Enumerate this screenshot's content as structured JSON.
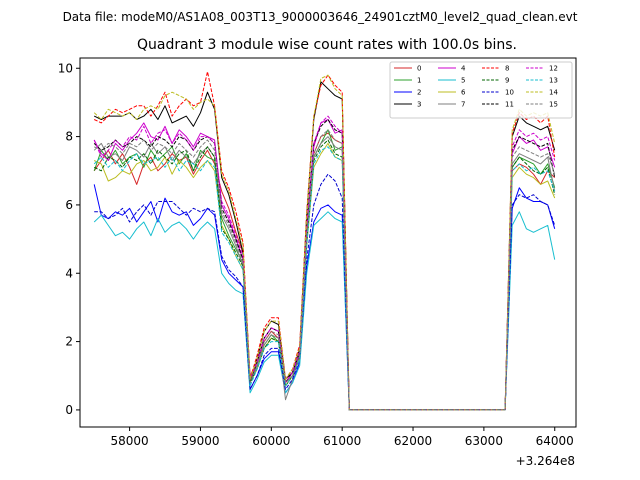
{
  "suptitle": "Data file: modeM0/AS1A08_003T13_9000003646_24901cztM0_level2_quad_clean.evt",
  "chart_data": {
    "type": "line",
    "title": "Quadrant 3 module wise count rates with 100.0s bins.",
    "xlabel": "",
    "ylabel": "",
    "x_offset_label": "+3.264e8",
    "xlim": [
      57300,
      64300
    ],
    "ylim": [
      -0.5,
      10.3
    ],
    "xticks": [
      58000,
      59000,
      60000,
      61000,
      62000,
      63000,
      64000
    ],
    "yticks": [
      0,
      2,
      4,
      6,
      8,
      10
    ],
    "legend_position": "top-right",
    "x": [
      57500,
      57600,
      57700,
      57800,
      57900,
      58000,
      58100,
      58200,
      58300,
      58400,
      58500,
      58600,
      58700,
      58800,
      58900,
      59000,
      59100,
      59200,
      59300,
      59400,
      59500,
      59600,
      59700,
      59800,
      59900,
      60000,
      60100,
      60200,
      60300,
      60400,
      60500,
      60600,
      60700,
      60800,
      60900,
      61000,
      61100,
      61200,
      61300,
      61400,
      61500,
      61600,
      61700,
      61800,
      61900,
      62000,
      62100,
      62200,
      62300,
      62400,
      62500,
      62600,
      62700,
      62800,
      62900,
      63000,
      63100,
      63200,
      63300,
      63400,
      63500,
      63600,
      63700,
      63800,
      63900,
      64000
    ],
    "series": [
      {
        "name": "0",
        "color": "#d62728",
        "dash": false,
        "values": [
          7.0,
          7.3,
          7.6,
          7.2,
          7.5,
          7.1,
          6.6,
          7.2,
          7.4,
          7.0,
          7.2,
          7.5,
          7.3,
          7.4,
          6.9,
          7.3,
          7.6,
          7.2,
          6.4,
          5.9,
          5.2,
          4.6,
          1.0,
          1.4,
          2.0,
          2.3,
          2.1,
          0.8,
          1.0,
          1.7,
          5.0,
          7.5,
          8.0,
          8.1,
          7.9,
          7.8,
          0,
          0,
          0,
          0,
          0,
          0,
          0,
          0,
          0,
          0,
          0,
          0,
          0,
          0,
          0,
          0,
          0,
          0,
          0,
          0,
          0,
          0,
          0,
          7.0,
          7.2,
          7.1,
          6.9,
          6.6,
          7.0,
          6.8
        ]
      },
      {
        "name": "1",
        "color": "#2ca02c",
        "dash": false,
        "values": [
          7.0,
          7.6,
          7.3,
          7.6,
          7.2,
          7.4,
          7.5,
          7.1,
          7.6,
          7.3,
          7.5,
          7.7,
          7.2,
          7.5,
          7.0,
          7.6,
          7.4,
          7.3,
          5.6,
          5.1,
          4.7,
          4.3,
          0.9,
          1.3,
          1.9,
          2.2,
          2.0,
          0.7,
          1.0,
          1.6,
          4.9,
          7.4,
          7.8,
          8.2,
          7.6,
          7.7,
          0,
          0,
          0,
          0,
          0,
          0,
          0,
          0,
          0,
          0,
          0,
          0,
          0,
          0,
          0,
          0,
          0,
          0,
          0,
          0,
          0,
          0,
          0,
          7.1,
          7.4,
          7.3,
          7.2,
          6.9,
          7.2,
          6.5
        ]
      },
      {
        "name": "2",
        "color": "#0000ff",
        "dash": false,
        "values": [
          6.6,
          5.7,
          5.6,
          5.8,
          5.7,
          5.9,
          5.5,
          5.8,
          6.1,
          5.5,
          6.2,
          5.8,
          5.7,
          5.8,
          5.4,
          5.6,
          5.9,
          5.7,
          4.4,
          4.0,
          3.8,
          3.6,
          0.6,
          1.0,
          1.5,
          1.7,
          1.7,
          0.5,
          0.8,
          1.4,
          4.2,
          5.5,
          5.9,
          6.0,
          5.8,
          5.7,
          0,
          0,
          0,
          0,
          0,
          0,
          0,
          0,
          0,
          0,
          0,
          0,
          0,
          0,
          0,
          0,
          0,
          0,
          0,
          0,
          0,
          0,
          0,
          5.9,
          6.5,
          6.2,
          6.1,
          6.1,
          6.0,
          5.3
        ]
      },
      {
        "name": "3",
        "color": "#000000",
        "dash": false,
        "values": [
          8.6,
          8.5,
          8.6,
          8.6,
          8.6,
          8.7,
          8.5,
          8.6,
          8.8,
          8.5,
          8.9,
          8.4,
          8.5,
          8.6,
          8.3,
          8.7,
          9.3,
          8.8,
          6.8,
          6.3,
          5.5,
          4.6,
          0.8,
          1.5,
          2.3,
          2.6,
          2.5,
          0.9,
          1.1,
          1.8,
          5.7,
          8.5,
          9.6,
          9.4,
          9.2,
          9.1,
          0,
          0,
          0,
          0,
          0,
          0,
          0,
          0,
          0,
          0,
          0,
          0,
          0,
          0,
          0,
          0,
          0,
          0,
          0,
          0,
          0,
          0,
          0,
          8.0,
          8.6,
          8.4,
          8.3,
          8.2,
          8.3,
          7.6
        ]
      },
      {
        "name": "4",
        "color": "#cc00cc",
        "dash": false,
        "values": [
          7.9,
          7.5,
          7.3,
          7.8,
          7.6,
          7.9,
          8.1,
          8.4,
          8.0,
          7.9,
          8.3,
          7.8,
          8.2,
          8.0,
          7.7,
          8.1,
          8.0,
          7.9,
          6.0,
          5.6,
          5.0,
          4.4,
          0.9,
          1.4,
          2.1,
          2.4,
          2.3,
          0.8,
          1.1,
          1.7,
          5.2,
          7.7,
          8.4,
          8.5,
          8.1,
          8.2,
          0,
          0,
          0,
          0,
          0,
          0,
          0,
          0,
          0,
          0,
          0,
          0,
          0,
          0,
          0,
          0,
          0,
          0,
          0,
          0,
          0,
          0,
          0,
          7.5,
          8.0,
          7.8,
          7.9,
          7.6,
          7.7,
          7.1
        ]
      },
      {
        "name": "5",
        "color": "#17becf",
        "dash": false,
        "values": [
          5.5,
          5.7,
          5.4,
          5.1,
          5.2,
          5.0,
          5.3,
          5.5,
          5.1,
          5.6,
          5.2,
          5.4,
          5.5,
          5.3,
          5.0,
          5.3,
          5.5,
          5.3,
          4.0,
          3.7,
          3.5,
          3.4,
          0.5,
          0.9,
          1.4,
          1.6,
          1.6,
          0.5,
          0.8,
          1.3,
          4.0,
          5.4,
          5.6,
          5.8,
          5.6,
          5.5,
          0,
          0,
          0,
          0,
          0,
          0,
          0,
          0,
          0,
          0,
          0,
          0,
          0,
          0,
          0,
          0,
          0,
          0,
          0,
          0,
          0,
          0,
          0,
          5.4,
          5.8,
          5.3,
          5.2,
          5.3,
          5.4,
          4.4
        ]
      },
      {
        "name": "6",
        "color": "#bcbd22",
        "dash": false,
        "values": [
          7.3,
          7.2,
          6.7,
          6.8,
          7.0,
          6.9,
          7.2,
          7.3,
          7.0,
          7.1,
          7.4,
          6.9,
          7.3,
          7.1,
          6.8,
          7.1,
          7.3,
          7.0,
          5.4,
          5.0,
          4.5,
          4.1,
          0.8,
          1.2,
          1.8,
          2.1,
          2.0,
          0.7,
          1.0,
          1.5,
          4.8,
          7.1,
          7.5,
          7.8,
          7.4,
          7.3,
          0,
          0,
          0,
          0,
          0,
          0,
          0,
          0,
          0,
          0,
          0,
          0,
          0,
          0,
          0,
          0,
          0,
          0,
          0,
          0,
          0,
          0,
          0,
          6.8,
          7.1,
          6.9,
          6.8,
          6.6,
          6.7,
          6.2
        ]
      },
      {
        "name": "7",
        "color": "#7f7f7f",
        "dash": false,
        "values": [
          7.6,
          7.8,
          7.4,
          7.5,
          7.3,
          7.7,
          7.6,
          7.4,
          7.8,
          7.5,
          7.7,
          7.3,
          7.6,
          7.4,
          7.2,
          7.5,
          7.7,
          7.4,
          5.7,
          5.3,
          4.8,
          4.2,
          0.8,
          1.3,
          1.9,
          2.2,
          2.1,
          0.3,
          0.9,
          1.6,
          5.0,
          7.4,
          7.8,
          8.0,
          7.7,
          7.6,
          0,
          0,
          0,
          0,
          0,
          0,
          0,
          0,
          0,
          0,
          0,
          0,
          0,
          0,
          0,
          0,
          0,
          0,
          0,
          0,
          0,
          0,
          0,
          7.2,
          7.5,
          7.4,
          7.3,
          7.2,
          7.4,
          6.4
        ]
      },
      {
        "name": "8",
        "color": "#ff0000",
        "dash": true,
        "values": [
          8.5,
          8.4,
          8.6,
          8.8,
          8.7,
          8.8,
          8.9,
          8.9,
          8.6,
          8.9,
          9.3,
          8.6,
          8.9,
          9.1,
          8.9,
          9.0,
          9.9,
          8.9,
          7.0,
          6.5,
          5.8,
          4.9,
          0.9,
          1.6,
          2.4,
          2.7,
          2.7,
          0.9,
          1.2,
          1.9,
          5.8,
          8.6,
          9.5,
          9.8,
          9.5,
          9.3,
          0,
          0,
          0,
          0,
          0,
          0,
          0,
          0,
          0,
          0,
          0,
          0,
          0,
          0,
          0,
          0,
          0,
          0,
          0,
          0,
          0,
          0,
          0,
          8.1,
          8.7,
          8.5,
          8.6,
          8.4,
          8.6,
          7.4
        ]
      },
      {
        "name": "9",
        "color": "#006400",
        "dash": true,
        "values": [
          7.1,
          7.0,
          7.4,
          7.3,
          7.1,
          7.4,
          7.3,
          7.5,
          7.2,
          7.6,
          7.4,
          7.2,
          7.5,
          7.6,
          7.0,
          7.4,
          7.7,
          7.4,
          5.3,
          5.0,
          4.6,
          4.2,
          0.8,
          1.2,
          1.8,
          2.1,
          2.0,
          0.7,
          1.0,
          1.6,
          4.9,
          7.3,
          7.7,
          7.9,
          7.5,
          7.4,
          0,
          0,
          0,
          0,
          0,
          0,
          0,
          0,
          0,
          0,
          0,
          0,
          0,
          0,
          0,
          0,
          0,
          0,
          0,
          0,
          0,
          0,
          0,
          7.1,
          7.4,
          7.2,
          7.0,
          6.9,
          7.1,
          6.3
        ]
      },
      {
        "name": "10",
        "color": "#0000cd",
        "dash": true,
        "values": [
          5.8,
          5.8,
          5.6,
          5.7,
          5.9,
          5.5,
          5.8,
          6.0,
          5.7,
          6.1,
          6.1,
          6.1,
          5.9,
          5.7,
          5.9,
          5.8,
          5.9,
          5.8,
          4.5,
          4.1,
          3.9,
          3.6,
          0.6,
          1.0,
          1.6,
          1.8,
          1.8,
          0.6,
          0.9,
          1.5,
          4.4,
          6.0,
          6.6,
          6.9,
          6.7,
          6.2,
          0,
          0,
          0,
          0,
          0,
          0,
          0,
          0,
          0,
          0,
          0,
          0,
          0,
          0,
          0,
          0,
          0,
          0,
          0,
          0,
          0,
          0,
          0,
          6.0,
          6.3,
          6.2,
          6.3,
          6.1,
          6.0,
          5.4
        ]
      },
      {
        "name": "11",
        "color": "#000000",
        "dash": true,
        "values": [
          7.8,
          7.6,
          7.7,
          7.9,
          7.7,
          7.8,
          8.0,
          7.9,
          7.7,
          8.0,
          7.9,
          7.7,
          8.0,
          7.9,
          7.6,
          7.9,
          8.0,
          7.8,
          5.9,
          5.5,
          5.0,
          4.4,
          0.8,
          1.4,
          2.1,
          2.4,
          2.3,
          0.8,
          1.1,
          1.7,
          5.3,
          7.8,
          8.3,
          8.5,
          8.2,
          8.1,
          0,
          0,
          0,
          0,
          0,
          0,
          0,
          0,
          0,
          0,
          0,
          0,
          0,
          0,
          0,
          0,
          0,
          0,
          0,
          0,
          0,
          0,
          0,
          7.6,
          8.0,
          7.9,
          7.8,
          7.7,
          7.8,
          6.8
        ]
      },
      {
        "name": "12",
        "color": "#cc00cc",
        "dash": true,
        "values": [
          7.9,
          7.4,
          7.6,
          7.9,
          7.7,
          8.0,
          7.9,
          8.3,
          7.8,
          8.1,
          8.2,
          7.8,
          8.1,
          7.9,
          7.6,
          8.0,
          8.0,
          7.8,
          6.1,
          5.7,
          5.1,
          4.5,
          0.9,
          1.4,
          2.1,
          2.4,
          2.3,
          0.8,
          1.1,
          1.7,
          5.3,
          7.8,
          8.4,
          8.6,
          8.3,
          8.1,
          0,
          0,
          0,
          0,
          0,
          0,
          0,
          0,
          0,
          0,
          0,
          0,
          0,
          0,
          0,
          0,
          0,
          0,
          0,
          0,
          0,
          0,
          0,
          7.7,
          8.2,
          8.0,
          8.1,
          7.9,
          8.0,
          7.3
        ]
      },
      {
        "name": "13",
        "color": "#17becf",
        "dash": true,
        "values": [
          7.2,
          7.4,
          7.1,
          7.3,
          7.0,
          7.3,
          7.5,
          7.2,
          7.3,
          7.4,
          7.1,
          7.4,
          7.0,
          7.3,
          7.2,
          7.0,
          7.3,
          7.1,
          5.2,
          4.9,
          4.5,
          4.1,
          0.7,
          1.2,
          1.8,
          2.0,
          2.0,
          0.7,
          1.0,
          1.5,
          4.8,
          7.2,
          7.6,
          7.7,
          7.4,
          7.3,
          0,
          0,
          0,
          0,
          0,
          0,
          0,
          0,
          0,
          0,
          0,
          0,
          0,
          0,
          0,
          0,
          0,
          0,
          0,
          0,
          0,
          0,
          0,
          7.0,
          7.2,
          7.0,
          7.1,
          6.9,
          7.0,
          6.4
        ]
      },
      {
        "name": "14",
        "color": "#bcbd22",
        "dash": true,
        "values": [
          8.7,
          8.5,
          8.8,
          8.7,
          8.6,
          8.7,
          8.5,
          8.8,
          8.9,
          8.8,
          9.2,
          9.3,
          9.2,
          9.1,
          8.8,
          9.0,
          9.1,
          8.9,
          6.9,
          6.4,
          5.6,
          4.8,
          0.9,
          1.5,
          2.3,
          2.6,
          2.6,
          0.9,
          1.2,
          1.8,
          5.7,
          8.6,
          9.7,
          9.8,
          9.4,
          9.2,
          0,
          0,
          0,
          0,
          0,
          0,
          0,
          0,
          0,
          0,
          0,
          0,
          0,
          0,
          0,
          0,
          0,
          0,
          0,
          0,
          0,
          0,
          0,
          8.2,
          8.8,
          8.6,
          8.7,
          8.6,
          8.7,
          7.8
        ]
      },
      {
        "name": "15",
        "color": "#7f7f7f",
        "dash": true,
        "values": [
          7.7,
          7.6,
          7.8,
          7.7,
          7.5,
          7.8,
          7.7,
          7.9,
          7.6,
          7.8,
          7.7,
          7.5,
          7.8,
          7.6,
          7.4,
          7.7,
          7.9,
          7.6,
          5.8,
          5.4,
          4.9,
          4.3,
          0.8,
          1.3,
          2.0,
          2.3,
          2.2,
          0.8,
          1.0,
          1.6,
          5.1,
          7.5,
          8.0,
          8.2,
          7.9,
          7.8,
          0,
          0,
          0,
          0,
          0,
          0,
          0,
          0,
          0,
          0,
          0,
          0,
          0,
          0,
          0,
          0,
          0,
          0,
          0,
          0,
          0,
          0,
          0,
          7.4,
          7.7,
          7.6,
          7.5,
          7.4,
          7.5,
          6.9
        ]
      }
    ]
  }
}
